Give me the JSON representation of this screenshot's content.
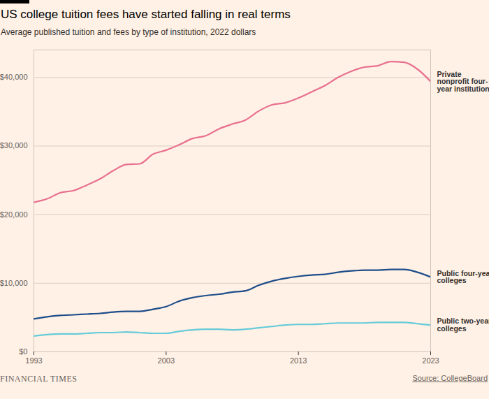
{
  "chart_data": {
    "type": "line",
    "title": "US college tuition fees have started falling in real terms",
    "subtitle": "Average published tuition and fees by type of institution, 2022 dollars",
    "source": "Source: CollegeBoard",
    "credit": "FINANCIAL TIMES",
    "x": [
      1993,
      1994,
      1995,
      1996,
      1997,
      1998,
      1999,
      2000,
      2001,
      2002,
      2003,
      2004,
      2005,
      2006,
      2007,
      2008,
      2009,
      2010,
      2011,
      2012,
      2013,
      2014,
      2015,
      2016,
      2017,
      2018,
      2019,
      2020,
      2021,
      2022,
      2023
    ],
    "series": [
      {
        "name": "Private nonprofit four-year institutions",
        "color": "#e8708f",
        "values": [
          21800,
          22300,
          23200,
          23500,
          24300,
          25200,
          26400,
          27300,
          27400,
          28800,
          29400,
          30200,
          31100,
          31500,
          32500,
          33200,
          33800,
          35100,
          36000,
          36300,
          37000,
          37900,
          38800,
          40000,
          40900,
          41500,
          41700,
          42300,
          42200,
          41200,
          39400
        ]
      },
      {
        "name": "Public four-year colleges",
        "color": "#1d4d8a",
        "values": [
          4800,
          5100,
          5300,
          5400,
          5500,
          5600,
          5800,
          5900,
          5900,
          6200,
          6600,
          7400,
          7900,
          8200,
          8400,
          8700,
          8900,
          9700,
          10300,
          10700,
          11000,
          11200,
          11300,
          11600,
          11800,
          11900,
          11900,
          12000,
          12000,
          11600,
          10900
        ]
      },
      {
        "name": "Public two-year colleges",
        "color": "#66cbd9",
        "values": [
          2300,
          2500,
          2600,
          2600,
          2700,
          2800,
          2800,
          2900,
          2800,
          2700,
          2700,
          3000,
          3200,
          3300,
          3300,
          3200,
          3300,
          3500,
          3700,
          3900,
          4000,
          4000,
          4100,
          4200,
          4200,
          4200,
          4300,
          4300,
          4300,
          4100,
          3900
        ]
      }
    ],
    "xlim": [
      1993,
      2023
    ],
    "xticks": [
      1993,
      2003,
      2013,
      2023
    ],
    "ylim": [
      0,
      44000
    ],
    "yticks": [
      {
        "value": 0,
        "label": "$0"
      },
      {
        "value": 10000,
        "label": "$10,000"
      },
      {
        "value": 20000,
        "label": "$20,000"
      },
      {
        "value": 30000,
        "label": "$30,000"
      },
      {
        "value": 40000,
        "label": "$40,000"
      }
    ],
    "grid": true
  }
}
